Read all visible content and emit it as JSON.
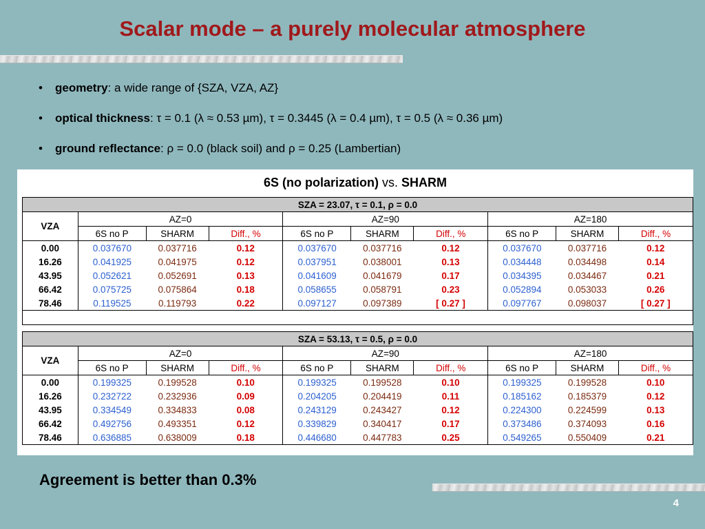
{
  "title": "Scalar mode – a purely molecular atmosphere",
  "bullets": [
    {
      "bold": "geometry",
      "text": ": a wide range of {SZA, VZA, AZ}"
    },
    {
      "bold": "optical thickness",
      "text": ": τ = 0.1 (λ ≈ 0.53 µm), τ = 0.3445 (λ = 0.4 µm), τ = 0.5 (λ ≈ 0.36 µm)"
    },
    {
      "bold": "ground reflectance",
      "text": ": ρ = 0.0 (black soil) and ρ = 0.25 (Lambertian)"
    }
  ],
  "panel": {
    "title_a": "6S (no polarization)",
    "title_vs": " vs. ",
    "title_b": "SHARM"
  },
  "columns": {
    "vza": "VZA",
    "az": [
      "AZ=0",
      "AZ=90",
      "AZ=180"
    ],
    "sub": [
      "6S no P",
      "SHARM",
      "Diff., %"
    ]
  },
  "table1": {
    "header": "SZA = 23.07, τ = 0.1, ρ = 0.0",
    "rows": [
      [
        "0.00",
        "0.037670",
        "0.037716",
        "0.12",
        "0.037670",
        "0.037716",
        "0.12",
        "0.037670",
        "0.037716",
        "0.12"
      ],
      [
        "16.26",
        "0.041925",
        "0.041975",
        "0.12",
        "0.037951",
        "0.038001",
        "0.13",
        "0.034448",
        "0.034498",
        "0.14"
      ],
      [
        "43.95",
        "0.052621",
        "0.052691",
        "0.13",
        "0.041609",
        "0.041679",
        "0.17",
        "0.034395",
        "0.034467",
        "0.21"
      ],
      [
        "66.42",
        "0.075725",
        "0.075864",
        "0.18",
        "0.058655",
        "0.058791",
        "0.23",
        "0.052894",
        "0.053033",
        "0.26"
      ],
      [
        "78.46",
        "0.119525",
        "0.119793",
        "0.22",
        "0.097127",
        "0.097389",
        "[ 0.27 ]",
        "0.097767",
        "0.098037",
        "[ 0.27 ]"
      ]
    ]
  },
  "table2": {
    "header": "SZA = 53.13, τ = 0.5, ρ = 0.0",
    "rows": [
      [
        "0.00",
        "0.199325",
        "0.199528",
        "0.10",
        "0.199325",
        "0.199528",
        "0.10",
        "0.199325",
        "0.199528",
        "0.10"
      ],
      [
        "16.26",
        "0.232722",
        "0.232936",
        "0.09",
        "0.204205",
        "0.204419",
        "0.11",
        "0.185162",
        "0.185379",
        "0.12"
      ],
      [
        "43.95",
        "0.334549",
        "0.334833",
        "0.08",
        "0.243129",
        "0.243427",
        "0.12",
        "0.224300",
        "0.224599",
        "0.13"
      ],
      [
        "66.42",
        "0.492756",
        "0.493351",
        "0.12",
        "0.339829",
        "0.340417",
        "0.17",
        "0.373486",
        "0.374093",
        "0.16"
      ],
      [
        "78.46",
        "0.636885",
        "0.638009",
        "0.18",
        "0.446680",
        "0.447783",
        "0.25",
        "0.549265",
        "0.550409",
        "0.21"
      ]
    ]
  },
  "conclusion": "Agreement is better than 0.3%",
  "page_number": "4",
  "colors": {
    "title": "#a0191b",
    "background": "#8fb8bd",
    "sixs": "#2b5fcf",
    "sharm": "#7a2a10",
    "diff": "#d40000"
  }
}
